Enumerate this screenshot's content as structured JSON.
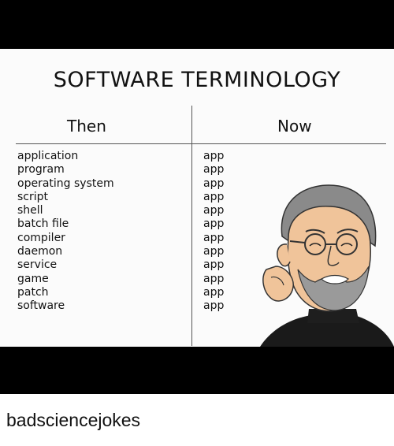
{
  "meme": {
    "title": "SOFTWARE TERMINOLOGY",
    "then_header": "Then",
    "now_header": "Now",
    "then_items": [
      "application",
      "program",
      "operating system",
      "script",
      "shell",
      "batch file",
      "compiler",
      "daemon",
      "service",
      "game",
      "patch",
      "software"
    ],
    "now_items": [
      "app",
      "app",
      "app",
      "app",
      "app",
      "app",
      "app",
      "app",
      "app",
      "app",
      "app",
      "app"
    ]
  },
  "watermark": "badsciencejokes"
}
